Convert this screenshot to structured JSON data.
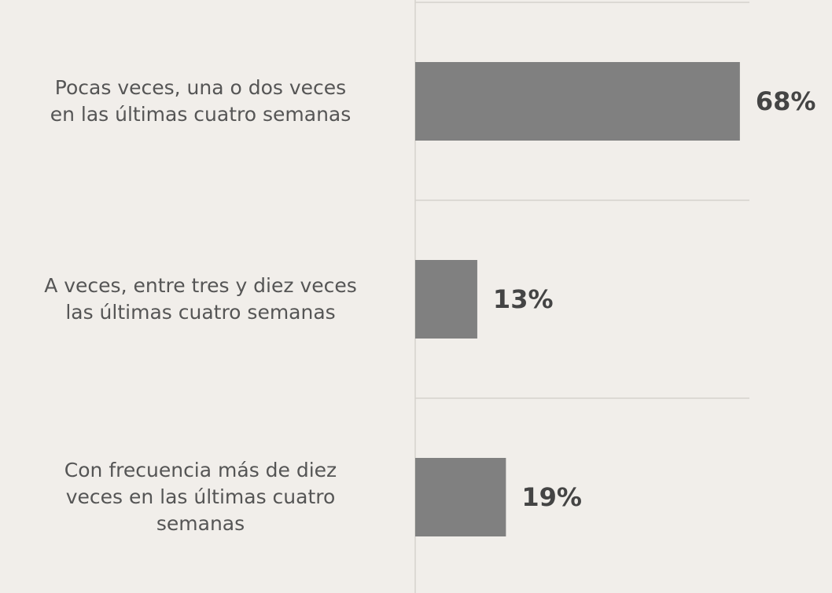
{
  "chart_data": {
    "type": "hbar",
    "categories": [
      "Pocas veces, una o dos veces\nen las últimas cuatro semanas",
      "A veces, entre tres y diez veces\nlas últimas cuatro semanas",
      "Con frecuencia más de diez\nveces en las últimas cuatro\nsemanas"
    ],
    "values": [
      68,
      13,
      19
    ],
    "value_labels": [
      "68%",
      "13%",
      "19%"
    ],
    "color": "#808080",
    "xlim": [
      0,
      70
    ]
  }
}
